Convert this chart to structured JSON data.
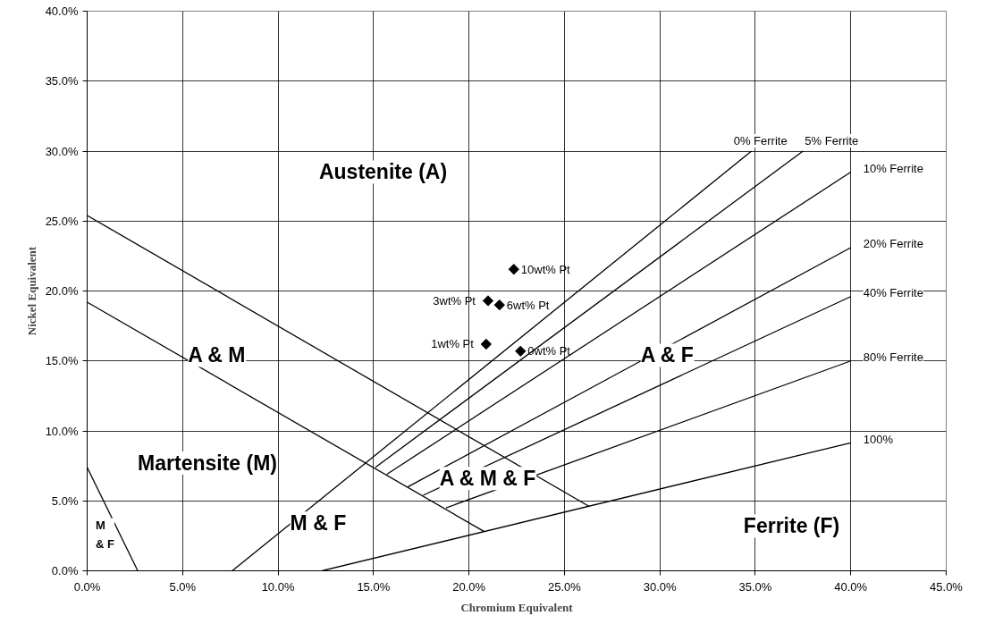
{
  "chart_data": {
    "type": "line",
    "xlabel": "Chromium Equivalent",
    "ylabel": "Nickel Equivalent",
    "xlim": [
      0,
      45
    ],
    "ylim": [
      0,
      40
    ],
    "xticks": [
      {
        "value": 0,
        "label": "0.0%"
      },
      {
        "value": 5,
        "label": "5.0%"
      },
      {
        "value": 10,
        "label": "10.0%"
      },
      {
        "value": 15,
        "label": "15.0%"
      },
      {
        "value": 20,
        "label": "20.0%"
      },
      {
        "value": 25,
        "label": "25.0%"
      },
      {
        "value": 30,
        "label": "30.0%"
      },
      {
        "value": 35,
        "label": "35.0%"
      },
      {
        "value": 40,
        "label": "40.0%"
      },
      {
        "value": 45,
        "label": "45.0%"
      }
    ],
    "yticks": [
      {
        "value": 0,
        "label": "0.0%"
      },
      {
        "value": 5,
        "label": "5.0%"
      },
      {
        "value": 10,
        "label": "10.0%"
      },
      {
        "value": 15,
        "label": "15.0%"
      },
      {
        "value": 20,
        "label": "20.0%"
      },
      {
        "value": 25,
        "label": "25.0%"
      },
      {
        "value": 30,
        "label": "30.0%"
      },
      {
        "value": 35,
        "label": "35.0%"
      },
      {
        "value": 40,
        "label": "40.0%"
      }
    ],
    "grid": true,
    "line_style": "solid",
    "marker": "none",
    "series": [
      {
        "color": "#000000",
        "x": [
          0,
          26.3
        ],
        "values": [
          25.4,
          4.6
        ]
      },
      {
        "color": "#000000",
        "x": [
          0,
          20.8
        ],
        "values": [
          19.2,
          2.8
        ]
      },
      {
        "color": "#000000",
        "x": [
          0,
          2.65
        ],
        "values": [
          7.4,
          0
        ]
      },
      {
        "name": "0% Ferrite",
        "color": "#000000",
        "x": [
          7.6,
          34.8
        ],
        "values": [
          0,
          30
        ]
      },
      {
        "name": "5% Ferrite",
        "color": "#000000",
        "x": [
          15.1,
          37.5
        ],
        "values": [
          7.4,
          30
        ]
      },
      {
        "name": "10% Ferrite",
        "color": "#000000",
        "x": [
          15.7,
          40
        ],
        "values": [
          6.9,
          28.5
        ]
      },
      {
        "name": "20% Ferrite",
        "color": "#000000",
        "x": [
          16.8,
          40
        ],
        "values": [
          6.0,
          23.1
        ]
      },
      {
        "name": "40% Ferrite",
        "color": "#000000",
        "x": [
          17.6,
          40
        ],
        "values": [
          5.4,
          19.6
        ]
      },
      {
        "name": "80% Ferrite",
        "color": "#000000",
        "x": [
          18.8,
          40
        ],
        "values": [
          4.5,
          15.0
        ]
      },
      {
        "name": "100%",
        "color": "#000000",
        "x": [
          12.3,
          40
        ],
        "values": [
          0,
          9.15
        ]
      },
      {
        "type": "scatter",
        "marker": "diamond",
        "color": "#000000",
        "x": [
          22.35,
          21.0,
          21.6,
          20.9,
          22.7
        ],
        "values": [
          21.55,
          19.3,
          19.0,
          16.2,
          15.7
        ]
      }
    ],
    "annotations": [
      {
        "text": "10wt% Pt",
        "x": 22.35,
        "y": 21.55
      },
      {
        "text": "3wt% Pt",
        "x": 21.0,
        "y": 19.3
      },
      {
        "text": "6wt% Pt",
        "x": 21.6,
        "y": 19.0
      },
      {
        "text": "1wt% Pt",
        "x": 20.9,
        "y": 16.2
      },
      {
        "text": "0wt% Pt",
        "x": 22.7,
        "y": 15.7
      },
      "Austenite (A)",
      "A & M",
      "A & F",
      "Martensite (M)",
      "A & M & F",
      "M & F",
      "Ferrite (F)",
      "M\n& F"
    ]
  }
}
